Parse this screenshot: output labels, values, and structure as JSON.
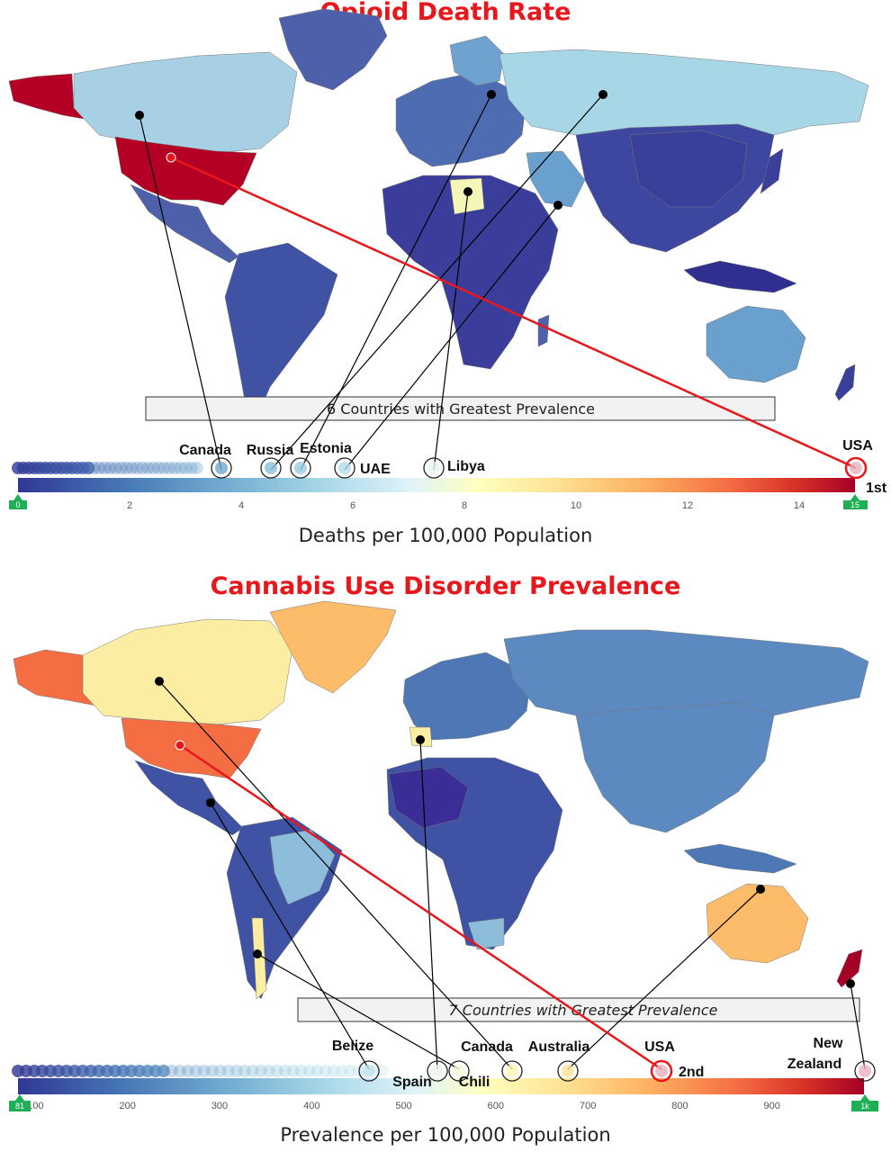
{
  "opioid": {
    "title": "Opioid Death Rate",
    "box_label": "6 Countries with Greatest Prevalence",
    "axis_title": "Deaths per 100,000 Population",
    "range_min_badge": "0",
    "range_max_badge": "15",
    "ticks": [
      "2",
      "4",
      "6",
      "8",
      "10",
      "12",
      "14"
    ],
    "rank_label": "1st",
    "countries": [
      {
        "name": "Canada",
        "value": 3.6
      },
      {
        "name": "Russia",
        "value": 4.5
      },
      {
        "name": "Estonia",
        "value": 5.0
      },
      {
        "name": "UAE",
        "value": 5.7
      },
      {
        "name": "Libya",
        "value": 7.3
      },
      {
        "name": "USA",
        "value": 14.7
      }
    ],
    "colors": {
      "low": "#313695",
      "mid": "#ffffbf",
      "high": "#a50026",
      "highlight": "#e8171b"
    }
  },
  "cannabis": {
    "title": "Cannabis Use Disorder Prevalence",
    "box_label": "7 Countries with Greatest Prevalence",
    "axis_title": "Prevalence per 100,000 Population",
    "range_min_badge": "81",
    "range_max_badge": "1k",
    "ticks": [
      "100",
      "200",
      "300",
      "400",
      "500",
      "600",
      "700",
      "800",
      "900"
    ],
    "rank_label": "2nd",
    "countries": [
      {
        "name": "Belize",
        "value": 460
      },
      {
        "name": "Spain",
        "value": 530
      },
      {
        "name": "Chili",
        "value": 555
      },
      {
        "name": "Canada",
        "value": 615
      },
      {
        "name": "Australia",
        "value": 675
      },
      {
        "name": "USA",
        "value": 780
      },
      {
        "name": "New Zealand",
        "value": 985
      }
    ],
    "new_zealand_line1": "New",
    "new_zealand_line2": "Zealand",
    "colors": {
      "low": "#313695",
      "mid": "#ffffbf",
      "high": "#a50026",
      "highlight": "#e8171b"
    }
  }
}
